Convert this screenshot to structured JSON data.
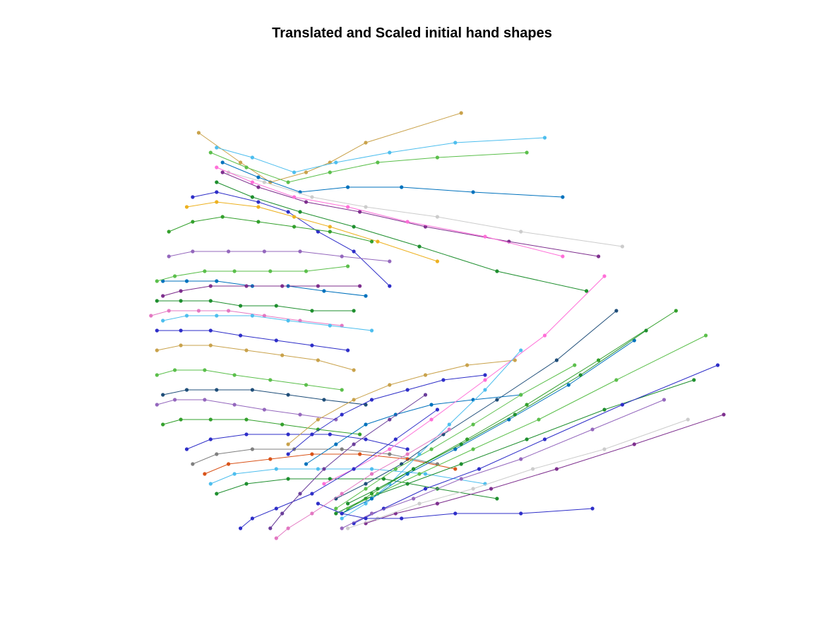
{
  "chart_data": {
    "type": "line",
    "title": "Translated and Scaled initial hand shapes",
    "xlabel": "",
    "ylabel": "",
    "axes_visible": false,
    "grid": false,
    "legend": "none",
    "xlim": [
      0,
      1
    ],
    "ylim": [
      0,
      1
    ],
    "marker": "dot",
    "palette": [
      "#0072bd",
      "#d95319",
      "#edb120",
      "#7e2f8e",
      "#77ac30",
      "#4dbeee",
      "#a2142f",
      "#1f8f2f",
      "#2e2ec8",
      "#6a3d9a",
      "#e377c2",
      "#b07aa1",
      "#c9a24b",
      "#33a02c",
      "#5bbf4b",
      "#9467bd",
      "#1f4e79",
      "#7f7f7f",
      "#cccccc",
      "#ff6fd8"
    ],
    "series": [
      {
        "color": "#c9a24b",
        "x": [
          0.56,
          0.4,
          0.34,
          0.3,
          0.24,
          0.19,
          0.12
        ],
        "y": [
          0.9,
          0.84,
          0.8,
          0.78,
          0.76,
          0.8,
          0.86
        ]
      },
      {
        "color": "#4dbeee",
        "x": [
          0.7,
          0.55,
          0.44,
          0.35,
          0.28,
          0.21,
          0.15
        ],
        "y": [
          0.85,
          0.84,
          0.82,
          0.8,
          0.78,
          0.81,
          0.83
        ]
      },
      {
        "color": "#5bbf4b",
        "x": [
          0.67,
          0.52,
          0.42,
          0.34,
          0.27,
          0.2,
          0.14
        ],
        "y": [
          0.82,
          0.81,
          0.8,
          0.78,
          0.76,
          0.79,
          0.82
        ]
      },
      {
        "color": "#0072bd",
        "x": [
          0.73,
          0.58,
          0.46,
          0.37,
          0.29,
          0.22,
          0.16
        ],
        "y": [
          0.73,
          0.74,
          0.75,
          0.75,
          0.74,
          0.77,
          0.8
        ]
      },
      {
        "color": "#7e2f8e",
        "x": [
          0.79,
          0.64,
          0.5,
          0.39,
          0.3,
          0.22,
          0.16
        ],
        "y": [
          0.61,
          0.64,
          0.67,
          0.7,
          0.72,
          0.75,
          0.78
        ]
      },
      {
        "color": "#cccccc",
        "x": [
          0.83,
          0.66,
          0.52,
          0.4,
          0.31,
          0.23,
          0.17
        ],
        "y": [
          0.63,
          0.66,
          0.69,
          0.71,
          0.73,
          0.76,
          0.78
        ]
      },
      {
        "color": "#1f8f2f",
        "x": [
          0.77,
          0.62,
          0.49,
          0.38,
          0.29,
          0.21,
          0.15
        ],
        "y": [
          0.54,
          0.58,
          0.63,
          0.67,
          0.7,
          0.73,
          0.76
        ]
      },
      {
        "color": "#ff6fd8",
        "x": [
          0.73,
          0.6,
          0.47,
          0.37,
          0.28,
          0.21,
          0.15
        ],
        "y": [
          0.61,
          0.65,
          0.68,
          0.71,
          0.73,
          0.76,
          0.79
        ]
      },
      {
        "color": "#2e2ec8",
        "x": [
          0.44,
          0.38,
          0.32,
          0.27,
          0.22,
          0.15,
          0.11
        ],
        "y": [
          0.55,
          0.62,
          0.66,
          0.7,
          0.72,
          0.74,
          0.73
        ]
      },
      {
        "color": "#edb120",
        "x": [
          0.52,
          0.42,
          0.34,
          0.28,
          0.22,
          0.15,
          0.1
        ],
        "y": [
          0.6,
          0.64,
          0.67,
          0.69,
          0.71,
          0.72,
          0.71
        ]
      },
      {
        "color": "#33a02c",
        "x": [
          0.41,
          0.34,
          0.28,
          0.22,
          0.16,
          0.11,
          0.07
        ],
        "y": [
          0.64,
          0.66,
          0.67,
          0.68,
          0.69,
          0.68,
          0.66
        ]
      },
      {
        "color": "#9467bd",
        "x": [
          0.44,
          0.36,
          0.29,
          0.23,
          0.17,
          0.11,
          0.07
        ],
        "y": [
          0.6,
          0.61,
          0.62,
          0.62,
          0.62,
          0.62,
          0.61
        ]
      },
      {
        "color": "#0072bd",
        "x": [
          0.4,
          0.33,
          0.27,
          0.21,
          0.15,
          0.1,
          0.06
        ],
        "y": [
          0.53,
          0.54,
          0.55,
          0.55,
          0.56,
          0.56,
          0.56
        ]
      },
      {
        "color": "#5bbf4b",
        "x": [
          0.37,
          0.3,
          0.24,
          0.18,
          0.13,
          0.08,
          0.05
        ],
        "y": [
          0.59,
          0.58,
          0.58,
          0.58,
          0.58,
          0.57,
          0.56
        ]
      },
      {
        "color": "#7e2f8e",
        "x": [
          0.39,
          0.32,
          0.26,
          0.2,
          0.14,
          0.09,
          0.06
        ],
        "y": [
          0.55,
          0.55,
          0.55,
          0.55,
          0.55,
          0.54,
          0.53
        ]
      },
      {
        "color": "#1f8f2f",
        "x": [
          0.38,
          0.31,
          0.25,
          0.19,
          0.14,
          0.09,
          0.05
        ],
        "y": [
          0.5,
          0.5,
          0.51,
          0.51,
          0.52,
          0.52,
          0.52
        ]
      },
      {
        "color": "#e377c2",
        "x": [
          0.36,
          0.29,
          0.23,
          0.17,
          0.12,
          0.07,
          0.04
        ],
        "y": [
          0.47,
          0.48,
          0.49,
          0.5,
          0.5,
          0.5,
          0.49
        ]
      },
      {
        "color": "#4dbeee",
        "x": [
          0.41,
          0.34,
          0.27,
          0.21,
          0.15,
          0.1,
          0.06
        ],
        "y": [
          0.46,
          0.47,
          0.48,
          0.49,
          0.49,
          0.49,
          0.48
        ]
      },
      {
        "color": "#2e2ec8",
        "x": [
          0.37,
          0.31,
          0.25,
          0.19,
          0.14,
          0.09,
          0.05
        ],
        "y": [
          0.42,
          0.43,
          0.44,
          0.45,
          0.46,
          0.46,
          0.46
        ]
      },
      {
        "color": "#c9a24b",
        "x": [
          0.38,
          0.32,
          0.26,
          0.2,
          0.14,
          0.09,
          0.05
        ],
        "y": [
          0.38,
          0.4,
          0.41,
          0.42,
          0.43,
          0.43,
          0.42
        ]
      },
      {
        "color": "#5bbf4b",
        "x": [
          0.36,
          0.3,
          0.24,
          0.18,
          0.13,
          0.08,
          0.05
        ],
        "y": [
          0.34,
          0.35,
          0.36,
          0.37,
          0.38,
          0.38,
          0.37
        ]
      },
      {
        "color": "#1f4e79",
        "x": [
          0.4,
          0.33,
          0.27,
          0.21,
          0.15,
          0.1,
          0.06
        ],
        "y": [
          0.31,
          0.32,
          0.33,
          0.34,
          0.34,
          0.34,
          0.33
        ]
      },
      {
        "color": "#9467bd",
        "x": [
          0.35,
          0.29,
          0.23,
          0.18,
          0.13,
          0.08,
          0.05
        ],
        "y": [
          0.28,
          0.29,
          0.3,
          0.31,
          0.32,
          0.32,
          0.31
        ]
      },
      {
        "color": "#33a02c",
        "x": [
          0.39,
          0.32,
          0.26,
          0.2,
          0.14,
          0.09,
          0.06
        ],
        "y": [
          0.25,
          0.26,
          0.27,
          0.28,
          0.28,
          0.28,
          0.27
        ]
      },
      {
        "color": "#2e2ec8",
        "x": [
          0.47,
          0.4,
          0.34,
          0.27,
          0.2,
          0.14,
          0.1
        ],
        "y": [
          0.22,
          0.24,
          0.25,
          0.25,
          0.25,
          0.24,
          0.22
        ]
      },
      {
        "color": "#7f7f7f",
        "x": [
          0.52,
          0.44,
          0.36,
          0.28,
          0.21,
          0.15,
          0.11
        ],
        "y": [
          0.19,
          0.21,
          0.22,
          0.22,
          0.22,
          0.21,
          0.19
        ]
      },
      {
        "color": "#d95319",
        "x": [
          0.55,
          0.47,
          0.39,
          0.31,
          0.24,
          0.17,
          0.13
        ],
        "y": [
          0.18,
          0.2,
          0.21,
          0.21,
          0.2,
          0.19,
          0.17
        ]
      },
      {
        "color": "#4dbeee",
        "x": [
          0.6,
          0.5,
          0.41,
          0.32,
          0.25,
          0.18,
          0.14
        ],
        "y": [
          0.15,
          0.17,
          0.18,
          0.18,
          0.18,
          0.17,
          0.15
        ]
      },
      {
        "color": "#1f8f2f",
        "x": [
          0.62,
          0.52,
          0.43,
          0.34,
          0.27,
          0.2,
          0.15
        ],
        "y": [
          0.12,
          0.14,
          0.16,
          0.16,
          0.16,
          0.15,
          0.13
        ]
      },
      {
        "color": "#c9a24b",
        "x": [
          0.65,
          0.57,
          0.5,
          0.44,
          0.38,
          0.32,
          0.27
        ],
        "y": [
          0.4,
          0.39,
          0.37,
          0.35,
          0.32,
          0.28,
          0.23
        ]
      },
      {
        "color": "#2e2ec8",
        "x": [
          0.6,
          0.53,
          0.47,
          0.41,
          0.36,
          0.31,
          0.27
        ],
        "y": [
          0.37,
          0.36,
          0.34,
          0.32,
          0.29,
          0.25,
          0.21
        ]
      },
      {
        "color": "#0072bd",
        "x": [
          0.66,
          0.58,
          0.51,
          0.45,
          0.4,
          0.35,
          0.3
        ],
        "y": [
          0.33,
          0.32,
          0.31,
          0.29,
          0.27,
          0.23,
          0.19
        ]
      },
      {
        "color": "#ff6fd8",
        "x": [
          0.8,
          0.7,
          0.6,
          0.51,
          0.44,
          0.38,
          0.33
        ],
        "y": [
          0.57,
          0.45,
          0.36,
          0.28,
          0.22,
          0.18,
          0.15
        ]
      },
      {
        "color": "#1f4e79",
        "x": [
          0.82,
          0.72,
          0.62,
          0.53,
          0.46,
          0.4,
          0.35
        ],
        "y": [
          0.5,
          0.4,
          0.32,
          0.25,
          0.19,
          0.15,
          0.12
        ]
      },
      {
        "color": "#5bbf4b",
        "x": [
          0.75,
          0.66,
          0.58,
          0.51,
          0.45,
          0.4,
          0.35
        ],
        "y": [
          0.39,
          0.33,
          0.27,
          0.22,
          0.18,
          0.14,
          0.1
        ]
      },
      {
        "color": "#4dbeee",
        "x": [
          0.66,
          0.6,
          0.54,
          0.49,
          0.44,
          0.4,
          0.36
        ],
        "y": [
          0.42,
          0.34,
          0.27,
          0.21,
          0.15,
          0.11,
          0.08
        ]
      },
      {
        "color": "#1f8f2f",
        "x": [
          0.95,
          0.8,
          0.67,
          0.56,
          0.47,
          0.4,
          0.35
        ],
        "y": [
          0.36,
          0.3,
          0.24,
          0.19,
          0.15,
          0.12,
          0.09
        ]
      },
      {
        "color": "#5bbf4b",
        "x": [
          0.97,
          0.82,
          0.69,
          0.58,
          0.49,
          0.42,
          0.37
        ],
        "y": [
          0.45,
          0.36,
          0.28,
          0.22,
          0.17,
          0.13,
          0.1
        ]
      },
      {
        "color": "#2e2ec8",
        "x": [
          0.99,
          0.83,
          0.7,
          0.59,
          0.5,
          0.43,
          0.38
        ],
        "y": [
          0.39,
          0.31,
          0.24,
          0.18,
          0.14,
          0.1,
          0.07
        ]
      },
      {
        "color": "#7e2f8e",
        "x": [
          1.0,
          0.85,
          0.72,
          0.61,
          0.52,
          0.45,
          0.4
        ],
        "y": [
          0.29,
          0.23,
          0.18,
          0.14,
          0.11,
          0.09,
          0.07
        ]
      },
      {
        "color": "#cccccc",
        "x": [
          0.94,
          0.8,
          0.68,
          0.58,
          0.49,
          0.42,
          0.37
        ],
        "y": [
          0.28,
          0.22,
          0.18,
          0.14,
          0.11,
          0.08,
          0.06
        ]
      },
      {
        "color": "#33a02c",
        "x": [
          0.92,
          0.79,
          0.67,
          0.57,
          0.48,
          0.41,
          0.36
        ],
        "y": [
          0.5,
          0.4,
          0.31,
          0.24,
          0.18,
          0.13,
          0.09
        ]
      },
      {
        "color": "#9467bd",
        "x": [
          0.9,
          0.78,
          0.66,
          0.56,
          0.48,
          0.41,
          0.36
        ],
        "y": [
          0.32,
          0.26,
          0.2,
          0.16,
          0.12,
          0.09,
          0.06
        ]
      },
      {
        "color": "#0072bd",
        "x": [
          0.85,
          0.74,
          0.64,
          0.55,
          0.47,
          0.41,
          0.36
        ],
        "y": [
          0.44,
          0.35,
          0.28,
          0.22,
          0.17,
          0.12,
          0.09
        ]
      },
      {
        "color": "#1f8f2f",
        "x": [
          0.87,
          0.76,
          0.65,
          0.56,
          0.48,
          0.42,
          0.37
        ],
        "y": [
          0.46,
          0.37,
          0.29,
          0.23,
          0.18,
          0.14,
          0.11
        ]
      },
      {
        "color": "#2e2ec8",
        "x": [
          0.78,
          0.66,
          0.55,
          0.46,
          0.4,
          0.36,
          0.32
        ],
        "y": [
          0.1,
          0.09,
          0.09,
          0.08,
          0.08,
          0.09,
          0.11
        ]
      },
      {
        "color": "#2e2ec8",
        "x": [
          0.52,
          0.45,
          0.38,
          0.31,
          0.25,
          0.21,
          0.19
        ],
        "y": [
          0.3,
          0.24,
          0.18,
          0.13,
          0.1,
          0.08,
          0.06
        ]
      },
      {
        "color": "#6a3d9a",
        "x": [
          0.5,
          0.44,
          0.38,
          0.33,
          0.29,
          0.26,
          0.24
        ],
        "y": [
          0.33,
          0.28,
          0.23,
          0.18,
          0.13,
          0.09,
          0.06
        ]
      },
      {
        "color": "#e377c2",
        "x": [
          0.54,
          0.47,
          0.41,
          0.36,
          0.31,
          0.27,
          0.25
        ],
        "y": [
          0.26,
          0.21,
          0.17,
          0.13,
          0.09,
          0.06,
          0.04
        ]
      }
    ]
  }
}
